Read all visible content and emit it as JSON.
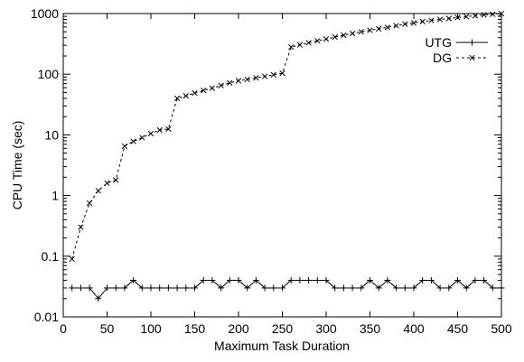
{
  "chart_data": {
    "type": "line",
    "title": "",
    "xlabel": "Maximum Task Duration",
    "ylabel": "CPU Time (sec)",
    "xlim": [
      0,
      500
    ],
    "ylim": [
      0.01,
      1000
    ],
    "yscale": "log",
    "grid": false,
    "legend_position": "top-right",
    "xticks": [
      0,
      50,
      100,
      150,
      200,
      250,
      300,
      350,
      400,
      450,
      500
    ],
    "xtick_labels": [
      "0",
      "50",
      "100",
      "150",
      "200",
      "250",
      "300",
      "350",
      "400",
      "450",
      "500"
    ],
    "yticks": [
      0.01,
      0.1,
      1,
      10,
      100,
      1000
    ],
    "ytick_labels": [
      "0.01",
      "0.1",
      "1",
      "10",
      "100",
      "1000"
    ],
    "series": [
      {
        "name": "UTG",
        "line_style": "solid",
        "marker": "plus",
        "x": [
          10,
          20,
          30,
          40,
          50,
          60,
          70,
          80,
          90,
          100,
          110,
          120,
          130,
          140,
          150,
          160,
          170,
          180,
          190,
          200,
          210,
          220,
          230,
          240,
          250,
          260,
          270,
          280,
          290,
          300,
          310,
          320,
          330,
          340,
          350,
          360,
          370,
          380,
          390,
          400,
          410,
          420,
          430,
          440,
          450,
          460,
          470,
          480,
          490,
          500
        ],
        "y": [
          0.03,
          0.03,
          0.03,
          0.02,
          0.03,
          0.03,
          0.03,
          0.04,
          0.03,
          0.03,
          0.03,
          0.03,
          0.03,
          0.03,
          0.03,
          0.04,
          0.04,
          0.03,
          0.04,
          0.04,
          0.03,
          0.04,
          0.03,
          0.03,
          0.03,
          0.04,
          0.04,
          0.04,
          0.04,
          0.04,
          0.03,
          0.03,
          0.03,
          0.03,
          0.04,
          0.03,
          0.04,
          0.03,
          0.03,
          0.03,
          0.04,
          0.04,
          0.03,
          0.03,
          0.04,
          0.03,
          0.04,
          0.04,
          0.03,
          0.03
        ]
      },
      {
        "name": "DG",
        "line_style": "dashed",
        "marker": "x",
        "x": [
          10,
          20,
          30,
          40,
          50,
          60,
          70,
          80,
          90,
          100,
          110,
          120,
          130,
          140,
          150,
          160,
          170,
          180,
          190,
          200,
          210,
          220,
          230,
          240,
          250,
          260,
          270,
          280,
          290,
          300,
          310,
          320,
          330,
          340,
          350,
          360,
          370,
          380,
          390,
          400,
          410,
          420,
          430,
          440,
          450,
          460,
          470,
          480,
          490,
          500
        ],
        "y": [
          0.09,
          0.3,
          0.75,
          1.2,
          1.6,
          1.8,
          6.5,
          7.8,
          9.0,
          10.5,
          12.0,
          12.5,
          40,
          44,
          49,
          54,
          59,
          65,
          72,
          78,
          82,
          87,
          92,
          98,
          104,
          280,
          305,
          330,
          355,
          380,
          410,
          440,
          470,
          500,
          530,
          560,
          590,
          630,
          670,
          700,
          740,
          770,
          800,
          830,
          860,
          890,
          920,
          950,
          975,
          1000
        ]
      }
    ]
  }
}
